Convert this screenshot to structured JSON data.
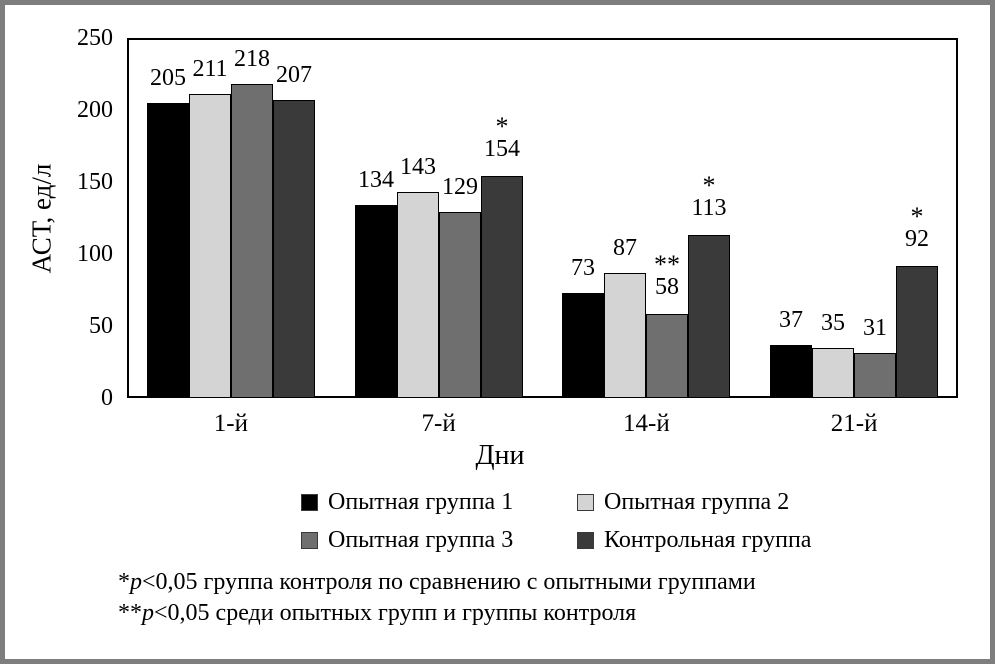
{
  "frame": {
    "border_color": "#7e7e7e",
    "background": "#ffffff"
  },
  "chart_data": {
    "type": "bar",
    "title": "",
    "xlabel": "Дни",
    "ylabel": "АСТ, ед/л",
    "ylim": [
      0,
      250
    ],
    "yticks": [
      0,
      50,
      100,
      150,
      200,
      250
    ],
    "grid": false,
    "legend_position": "below-chart-two-columns",
    "categories": [
      "1-й",
      "7-й",
      "14-й",
      "21-й"
    ],
    "series": [
      {
        "name": "Опытная группа 1",
        "color": "#000000",
        "values": [
          205,
          134,
          73,
          37
        ],
        "significance": [
          "",
          "",
          "",
          ""
        ]
      },
      {
        "name": "Опытная группа 2",
        "color": "#d4d4d4",
        "values": [
          211,
          143,
          87,
          35
        ],
        "significance": [
          "",
          "",
          "",
          ""
        ]
      },
      {
        "name": "Опытная группа 3",
        "color": "#6f6f6f",
        "values": [
          218,
          129,
          58,
          31
        ],
        "significance": [
          "",
          "",
          "**",
          ""
        ]
      },
      {
        "name": "Контрольная группа",
        "color": "#3a3a3a",
        "values": [
          207,
          154,
          113,
          92
        ],
        "significance": [
          "",
          "*",
          "*",
          "*"
        ]
      }
    ]
  },
  "footnotes": [
    {
      "marker": "*",
      "p": "p",
      "text": "<0,05 группа контроля по сравнению с опытными группами"
    },
    {
      "marker": "**",
      "p": "p",
      "text": "<0,05 среди опытных групп и группы контроля"
    }
  ]
}
